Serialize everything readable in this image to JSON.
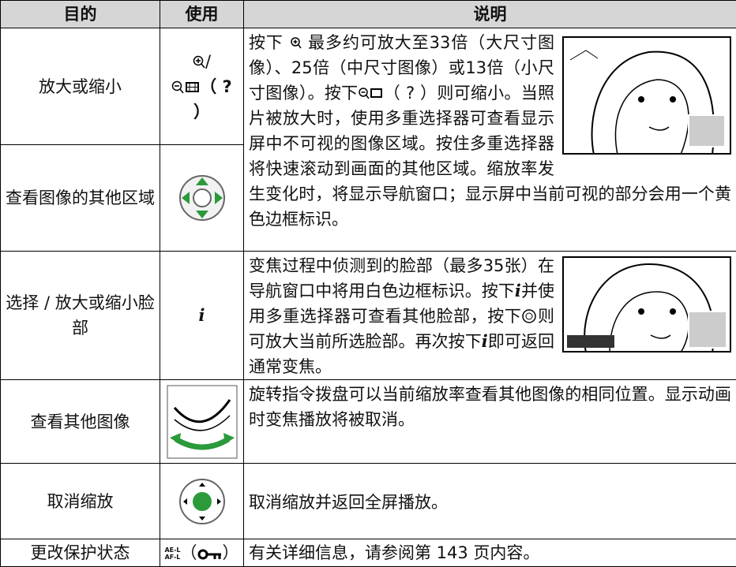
{
  "header": {
    "purpose": "目的",
    "usage": "使用",
    "description": "说明"
  },
  "rows": [
    {
      "purpose": "放大或缩小",
      "usage": [
        "/",
        "（ ? ）"
      ],
      "description": [
        "按下",
        "最多约可放大至33倍（大尺寸图像）、25倍（中尺寸图像）或13倍（小尺寸图像）。按下",
        "（ ? ）则可缩小。当照片被放大时，使用多重选择器可查看显示屏中不可视的图像区域。按住多重选择器将快速滚动到画面的其他区域。缩放率发生变化时，将显示导航窗口；显示屏中当前可视的部分会用一个黄色边框标识。"
      ]
    },
    {
      "purpose": "查看图像的其他区域"
    },
    {
      "purpose": "选择 / 放大或缩小脸部",
      "usage": "i",
      "description": [
        "变焦过程中侦测到的脸部（最多35张）在导航窗口中将用白色边框标识。按下",
        "并使用多重选择器可查看其他脸部，按下",
        "则可放大当前所选脸部。再次按下",
        "即可返回通常变焦。"
      ]
    },
    {
      "purpose": "查看其他图像",
      "description": "旋转指令拨盘可以当前缩放率查看其他图像的相同位置。显示动画时变焦播放将被取消。"
    },
    {
      "purpose": "取消缩放",
      "description": "取消缩放并返回全屏播放。"
    },
    {
      "purpose": "更改保护状态",
      "usage": [
        "AE-L",
        "AF-L",
        "（",
        "）"
      ],
      "description": "有关详细信息，请参阅第 143 页内容。"
    }
  ]
}
